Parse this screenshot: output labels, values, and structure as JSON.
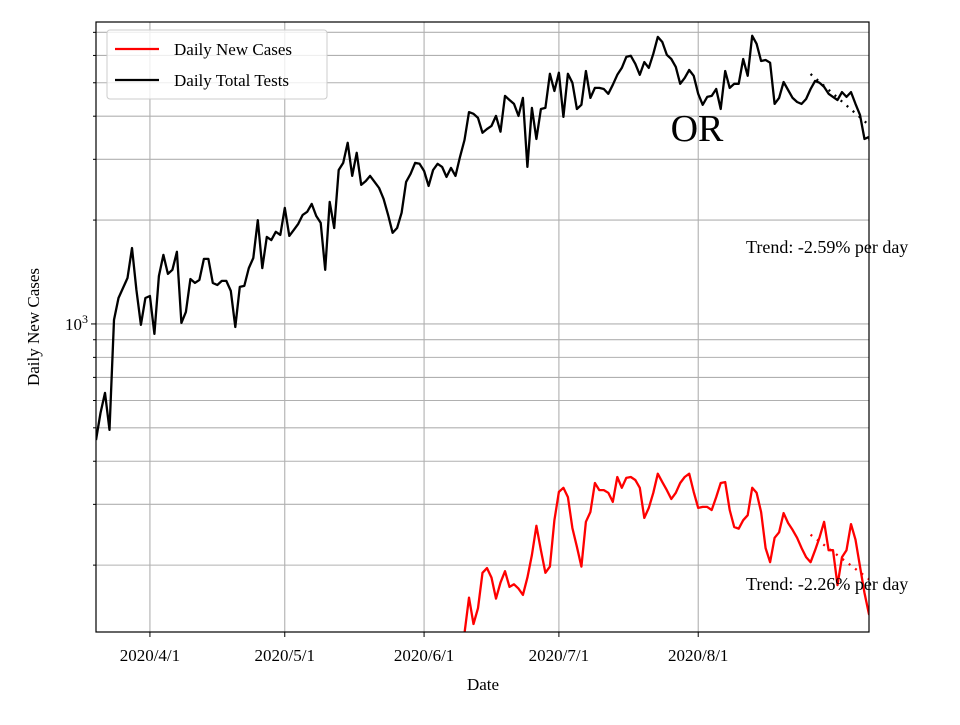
{
  "chart_data": {
    "type": "line",
    "title": "",
    "xlabel": "Date",
    "ylabel": "Daily New Cases",
    "yscale": "log",
    "ylim": [
      128,
      7500
    ],
    "xlim": [
      "2020-03-20",
      "2020-09-08"
    ],
    "grid": true,
    "legend_placement": "top-left",
    "annotation": "OR",
    "x_ticks": [
      {
        "date": "2020-04-01",
        "label": "2020/4/1"
      },
      {
        "date": "2020-05-01",
        "label": "2020/5/1"
      },
      {
        "date": "2020-06-01",
        "label": "2020/6/1"
      },
      {
        "date": "2020-07-01",
        "label": "2020/7/1"
      },
      {
        "date": "2020-08-01",
        "label": "2020/8/1"
      }
    ],
    "y_major_tick": {
      "value": 1000,
      "base": "10",
      "exp": "3"
    },
    "y_minor_ticks": [
      200,
      300,
      400,
      500,
      600,
      700,
      800,
      900,
      2000,
      3000,
      4000,
      5000,
      6000,
      7000
    ],
    "series": [
      {
        "name": "Daily New Cases",
        "color": "#ff0000",
        "start_date": "2020-06-10",
        "values": [
          127,
          161,
          135,
          150,
          190,
          196,
          184,
          160,
          178,
          192,
          173,
          176,
          171,
          164,
          184,
          214,
          260,
          221,
          190,
          198,
          270,
          326,
          335,
          315,
          256,
          226,
          198,
          267,
          285,
          346,
          330,
          330,
          324,
          305,
          360,
          335,
          358,
          360,
          353,
          335,
          274,
          293,
          324,
          368,
          348,
          330,
          311,
          324,
          346,
          360,
          368,
          326,
          293,
          295,
          295,
          289,
          315,
          346,
          348,
          289,
          258,
          255,
          270,
          279,
          335,
          324,
          285,
          224,
          204,
          240,
          249,
          283,
          265,
          253,
          240,
          224,
          211,
          204,
          221,
          241,
          267,
          221,
          221,
          175,
          211,
          221,
          263,
          237,
          198,
          166,
          144,
          143
        ],
        "trend": {
          "label": "Trend: -2.26% per day",
          "rate_pct_per_day": -2.26,
          "start_date": "2020-08-26",
          "start_value": 245,
          "days": 14
        }
      },
      {
        "name": "Daily Total Tests",
        "color": "#000000",
        "start_date": "2020-03-20",
        "values": [
          461,
          552,
          631,
          493,
          1027,
          1189,
          1271,
          1359,
          1660,
          1255,
          994,
          1189,
          1205,
          936,
          1377,
          1585,
          1396,
          1435,
          1618,
          1007,
          1084,
          1350,
          1315,
          1342,
          1543,
          1543,
          1315,
          1297,
          1333,
          1333,
          1247,
          980,
          1280,
          1289,
          1452,
          1553,
          2000,
          1452,
          1787,
          1750,
          1849,
          1811,
          2169,
          1800,
          1871,
          1950,
          2070,
          2113,
          2228,
          2056,
          1963,
          1435,
          2258,
          1897,
          2793,
          2929,
          3350,
          2685,
          3133,
          2529,
          2594,
          2685,
          2580,
          2478,
          2303,
          2070,
          1837,
          1897,
          2099,
          2580,
          2723,
          2929,
          2911,
          2774,
          2512,
          2793,
          2911,
          2851,
          2667,
          2832,
          2685,
          3048,
          3412,
          4111,
          4064,
          3954,
          3580,
          3673,
          3750,
          4009,
          3606,
          4581,
          4457,
          4343,
          4009,
          4519,
          2851,
          4227,
          3436,
          4198,
          4227,
          5309,
          4732,
          5346,
          3981,
          5309,
          5000,
          4198,
          4315,
          5408,
          4519,
          4831,
          4831,
          4797,
          4645,
          4932,
          5272,
          5521,
          5943,
          5984,
          5675,
          5272,
          5741,
          5521,
          6067,
          6792,
          6561,
          6026,
          5861,
          5558,
          4966,
          5164,
          5445,
          5236,
          4645,
          4315,
          4550,
          4581,
          4797,
          4198,
          5408,
          4831,
          4966,
          4966,
          5861,
          5236,
          6839,
          6486,
          5781,
          5821,
          5715,
          4343,
          4519,
          5025,
          4764,
          4519,
          4398,
          4343,
          4487,
          4797,
          5061,
          5000,
          4864,
          4645,
          4550,
          4457,
          4699,
          4550,
          4699,
          4343,
          4036,
          3436,
          3483,
          2871
        ],
        "trend": {
          "label": "Trend: -2.59% per day",
          "rate_pct_per_day": -2.59,
          "start_date": "2020-08-26",
          "start_value": 5300,
          "days": 14
        }
      }
    ]
  }
}
